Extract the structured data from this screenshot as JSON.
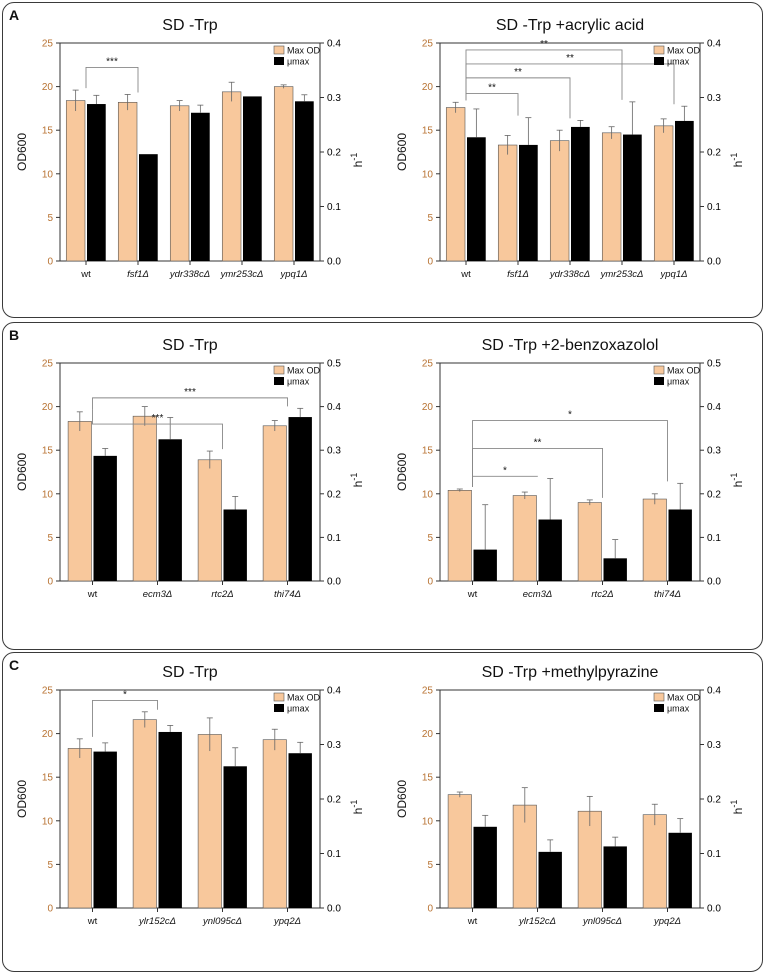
{
  "panels": [
    {
      "letter": "A"
    },
    {
      "letter": "B"
    },
    {
      "letter": "C"
    }
  ],
  "style": {
    "max_od_color": "#f8c89c",
    "mu_max_color": "#000000",
    "left_axis_color": "#b87333",
    "right_axis_color": "#000000"
  },
  "chart_data": [
    {
      "type": "bar",
      "panel": "A",
      "title": "SD -Trp",
      "categories": [
        "wt",
        "fsf1Δ",
        "ydr338cΔ",
        "ymr253cΔ",
        "ypq1Δ"
      ],
      "ylabel": "OD600",
      "ylabel_right": "h",
      "ylabel_right_sup": "-1",
      "ylim": [
        0,
        25
      ],
      "ylim_right": [
        0,
        0.4
      ],
      "yticks": [
        0,
        5,
        10,
        15,
        20,
        25
      ],
      "yticks_right": [
        "0.0",
        "0.1",
        "0.2",
        "0.3",
        "0.4"
      ],
      "legend": [
        "Max OD",
        "μmax"
      ],
      "series": [
        {
          "name": "Max OD",
          "axis": "left",
          "values": [
            18.4,
            18.2,
            17.8,
            19.4,
            20.0
          ],
          "errors": [
            1.2,
            0.9,
            0.6,
            1.1,
            0.2
          ]
        },
        {
          "name": "μmax",
          "axis": "right",
          "values": [
            0.288,
            0.196,
            0.272,
            0.302,
            0.293
          ],
          "errors": [
            0.016,
            0.0,
            0.014,
            0.0,
            0.012
          ]
        }
      ],
      "significance": [
        {
          "from": 0,
          "to": 1,
          "label": "***",
          "y_od": 22.2
        }
      ]
    },
    {
      "type": "bar",
      "panel": "A",
      "title": "SD -Trp +acrylic acid",
      "categories": [
        "wt",
        "fsf1Δ",
        "ydr338cΔ",
        "ymr253cΔ",
        "ypq1Δ"
      ],
      "ylabel": "OD600",
      "ylabel_right": "h",
      "ylabel_right_sup": "-1",
      "ylim": [
        0,
        25
      ],
      "ylim_right": [
        0,
        0.4
      ],
      "yticks": [
        0,
        5,
        10,
        15,
        20,
        25
      ],
      "yticks_right": [
        "0.0",
        "0.1",
        "0.2",
        "0.3",
        "0.4"
      ],
      "legend": [
        "Max OD",
        "μmax"
      ],
      "series": [
        {
          "name": "Max OD",
          "axis": "left",
          "values": [
            17.6,
            13.3,
            13.8,
            14.7,
            15.5
          ],
          "errors": [
            0.6,
            1.1,
            1.2,
            0.7,
            0.8
          ]
        },
        {
          "name": "μmax",
          "axis": "right",
          "values": [
            0.227,
            0.213,
            0.246,
            0.232,
            0.257
          ],
          "errors": [
            0.052,
            0.05,
            0.012,
            0.06,
            0.027
          ]
        }
      ],
      "significance": [
        {
          "from": 0,
          "to": 1,
          "label": "**",
          "y_od": 19.2
        },
        {
          "from": 0,
          "to": 2,
          "label": "**",
          "y_od": 21.0
        },
        {
          "from": 0,
          "to": 4,
          "label": "**",
          "y_od": 22.6
        },
        {
          "from": 0,
          "to": 3,
          "label": "**",
          "y_od": 24.2
        }
      ]
    },
    {
      "type": "bar",
      "panel": "B",
      "title": "SD -Trp",
      "categories": [
        "wt",
        "ecm3Δ",
        "rtc2Δ",
        "thi74Δ"
      ],
      "ylabel": "OD600",
      "ylabel_right": "h",
      "ylabel_right_sup": "-1",
      "ylim": [
        0,
        25
      ],
      "ylim_right": [
        0,
        0.5
      ],
      "yticks": [
        0,
        5,
        10,
        15,
        20,
        25
      ],
      "yticks_right": [
        "0.0",
        "0.1",
        "0.2",
        "0.3",
        "0.4",
        "0.5"
      ],
      "legend": [
        "Max OD",
        "μmax"
      ],
      "series": [
        {
          "name": "Max OD",
          "axis": "left",
          "values": [
            18.3,
            18.9,
            13.9,
            17.8
          ],
          "errors": [
            1.1,
            1.1,
            1.0,
            0.6
          ]
        },
        {
          "name": "μmax",
          "axis": "right",
          "values": [
            0.287,
            0.325,
            0.164,
            0.376
          ],
          "errors": [
            0.017,
            0.05,
            0.03,
            0.02
          ]
        }
      ],
      "significance": [
        {
          "from": 0,
          "to": 2,
          "label": "***",
          "y_od": 18.0
        },
        {
          "from": 0,
          "to": 3,
          "label": "***",
          "y_od": 21.0
        }
      ]
    },
    {
      "type": "bar",
      "panel": "B",
      "title": "SD -Trp +2-benzoxazolol",
      "categories": [
        "wt",
        "ecm3Δ",
        "rtc2Δ",
        "thi74Δ"
      ],
      "ylabel": "OD600",
      "ylabel_right": "h",
      "ylabel_right_sup": "-1",
      "ylim": [
        0,
        25
      ],
      "ylim_right": [
        0,
        0.5
      ],
      "yticks": [
        0,
        5,
        10,
        15,
        20,
        25
      ],
      "yticks_right": [
        "0.0",
        "0.1",
        "0.2",
        "0.3",
        "0.4",
        "0.5"
      ],
      "legend": [
        "Max OD",
        "μmax"
      ],
      "series": [
        {
          "name": "Max OD",
          "axis": "left",
          "values": [
            10.4,
            9.8,
            9.0,
            9.4
          ],
          "errors": [
            0.15,
            0.4,
            0.3,
            0.6
          ]
        },
        {
          "name": "μmax",
          "axis": "right",
          "values": [
            0.072,
            0.141,
            0.052,
            0.164
          ],
          "errors": [
            0.103,
            0.094,
            0.043,
            0.06
          ]
        }
      ],
      "significance": [
        {
          "from": 0,
          "to": 1,
          "label": "*",
          "y_od": 12.0
        },
        {
          "from": 0,
          "to": 2,
          "label": "**",
          "y_od": 15.2
        },
        {
          "from": 0,
          "to": 3,
          "label": "*",
          "y_od": 18.4
        }
      ]
    },
    {
      "type": "bar",
      "panel": "C",
      "title": "SD -Trp",
      "categories": [
        "wt",
        "ylr152cΔ",
        "ynl095cΔ",
        "ypq2Δ"
      ],
      "ylabel": "OD600",
      "ylabel_right": "h",
      "ylabel_right_sup": "-1",
      "ylim": [
        0,
        25
      ],
      "ylim_right": [
        0,
        0.4
      ],
      "yticks": [
        0,
        5,
        10,
        15,
        20,
        25
      ],
      "yticks_right": [
        "0.0",
        "0.1",
        "0.2",
        "0.3",
        "0.4"
      ],
      "legend": [
        "Max OD",
        "μmax"
      ],
      "series": [
        {
          "name": "Max OD",
          "axis": "left",
          "values": [
            18.3,
            21.6,
            19.9,
            19.3
          ],
          "errors": [
            1.1,
            0.9,
            1.9,
            1.2
          ]
        },
        {
          "name": "μmax",
          "axis": "right",
          "values": [
            0.287,
            0.323,
            0.26,
            0.284
          ],
          "errors": [
            0.016,
            0.012,
            0.034,
            0.02
          ]
        }
      ],
      "significance": [
        {
          "from": 0,
          "to": 1,
          "label": "*",
          "y_od": 23.8
        }
      ]
    },
    {
      "type": "bar",
      "panel": "C",
      "title": "SD -Trp +methylpyrazine",
      "categories": [
        "wt",
        "ylr152cΔ",
        "ynl095cΔ",
        "ypq2Δ"
      ],
      "ylabel": "OD600",
      "ylabel_right": "h",
      "ylabel_right_sup": "-1",
      "ylim": [
        0,
        25
      ],
      "ylim_right": [
        0,
        0.4
      ],
      "yticks": [
        0,
        5,
        10,
        15,
        20,
        25
      ],
      "yticks_right": [
        "0.0",
        "0.1",
        "0.2",
        "0.3",
        "0.4"
      ],
      "legend": [
        "Max OD",
        "μmax"
      ],
      "series": [
        {
          "name": "Max OD",
          "axis": "left",
          "values": [
            13.0,
            11.8,
            11.1,
            10.7
          ],
          "errors": [
            0.3,
            2.0,
            1.7,
            1.2
          ]
        },
        {
          "name": "μmax",
          "axis": "right",
          "values": [
            0.149,
            0.103,
            0.113,
            0.138
          ],
          "errors": [
            0.021,
            0.022,
            0.017,
            0.026
          ]
        }
      ],
      "significance": []
    }
  ]
}
